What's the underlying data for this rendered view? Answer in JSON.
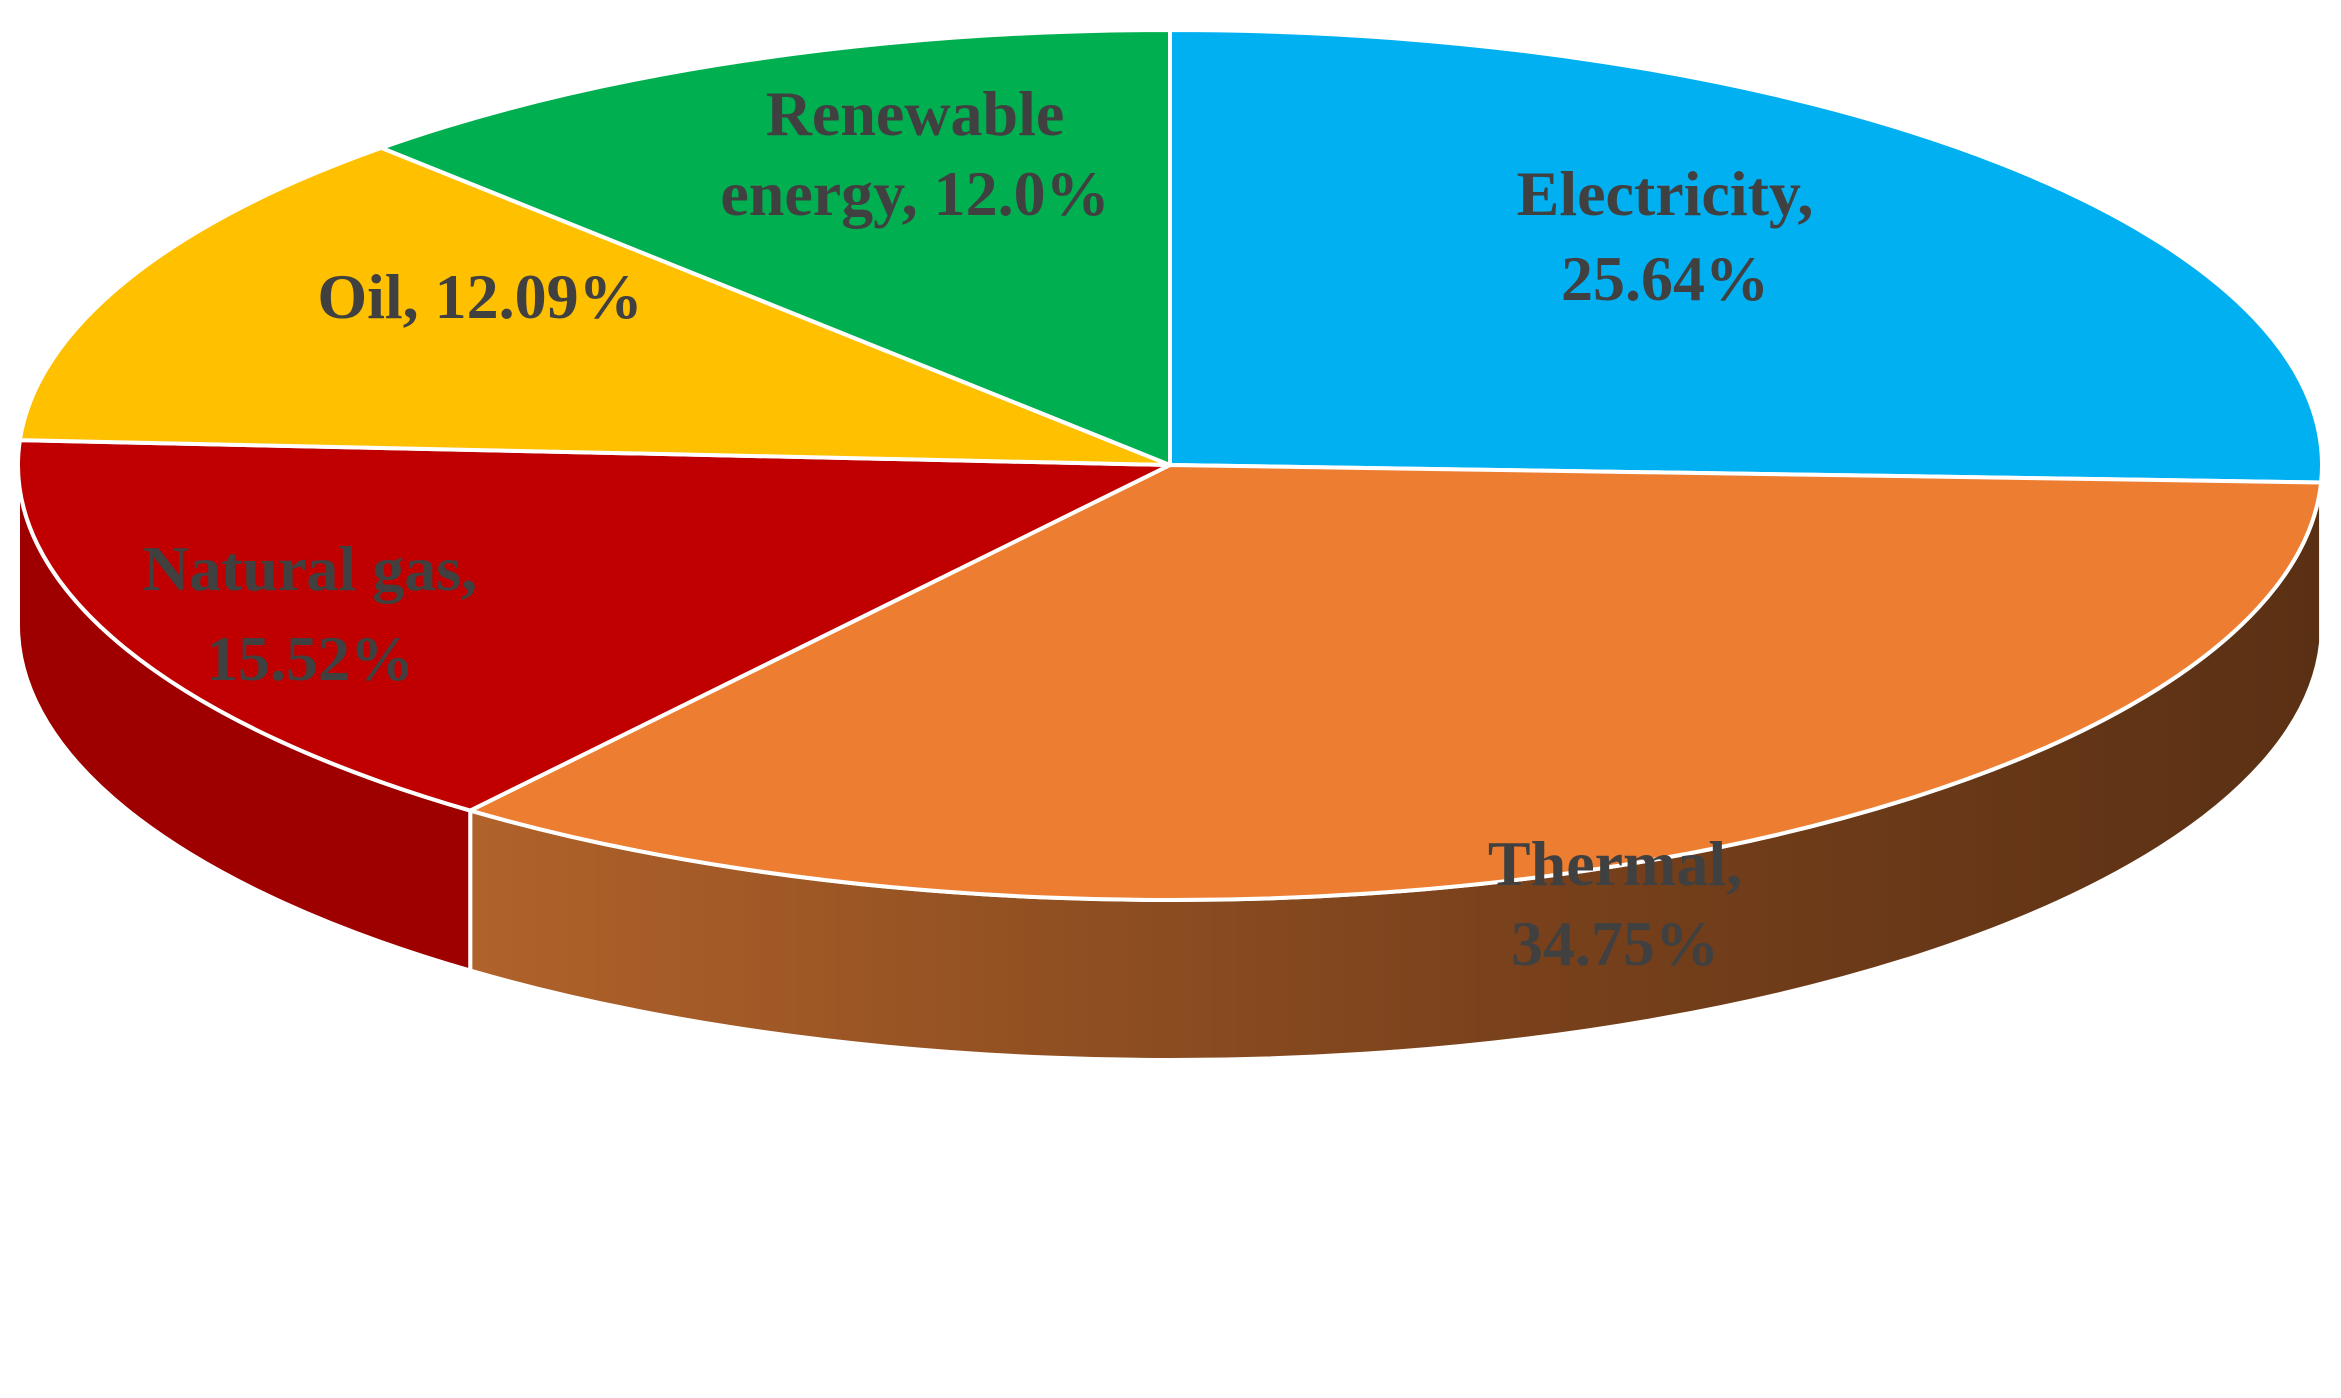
{
  "chart_data": {
    "type": "pie",
    "title": "",
    "style": "3d",
    "slices": [
      {
        "name": "Electricity",
        "value": 25.64,
        "label_line1": "Electricity,",
        "label_line2": "25.64%",
        "color": "#00B0F0"
      },
      {
        "name": "Thermal",
        "value": 34.75,
        "label_line1": "Thermal,",
        "label_line2": "34.75%",
        "color": "#ED7D31"
      },
      {
        "name": "Natural gas",
        "value": 15.52,
        "label_line1": "Natural gas,",
        "label_line2": "15.52%",
        "color": "#C00000"
      },
      {
        "name": "Oil",
        "value": 12.09,
        "label_line1": "Oil, 12.09%",
        "label_line2": "",
        "color": "#FFC000"
      },
      {
        "name": "Renewable energy",
        "value": 12.0,
        "label_line1": "Renewable",
        "label_line2": "energy, 12.0%",
        "color": "#00B050"
      }
    ],
    "label_color": "#404040",
    "side_colors": {
      "Thermal_light": "#B0622A",
      "Thermal_dark": "#5A3014",
      "Natural gas": "#9E0000"
    }
  }
}
